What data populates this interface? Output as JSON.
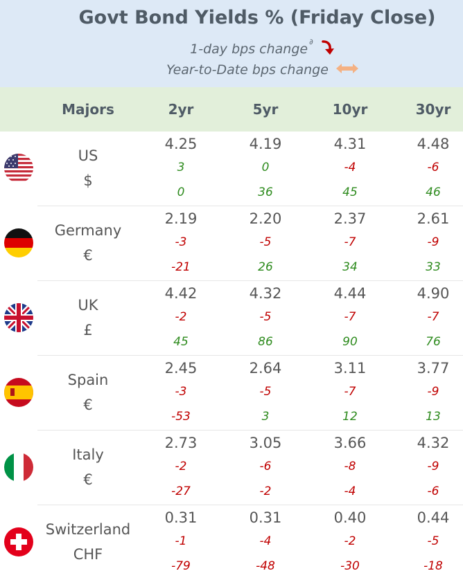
{
  "header": {
    "title": "Govt Bond Yields %  (Friday Close)",
    "legend_1day": "1-day bps change",
    "legend_1day_sup": "∂",
    "legend_ytd": "Year-to-Date bps change"
  },
  "columns": {
    "majors": "Majors",
    "c2": "2yr",
    "c5": "5yr",
    "c10": "10yr",
    "c30": "30yr"
  },
  "colors": {
    "header_bg": "#dde9f6",
    "colhead_bg": "#e2efda",
    "positive": "#2e8b1e",
    "negative": "#c00000"
  },
  "rows": [
    {
      "country": "US",
      "currency": "$",
      "flag": "us-flag",
      "yields": [
        "4.25",
        "4.19",
        "4.31",
        "4.48"
      ],
      "day": [
        "3",
        "0",
        "-4",
        "-6"
      ],
      "ytd": [
        "0",
        "36",
        "45",
        "46"
      ]
    },
    {
      "country": "Germany",
      "currency": "€",
      "flag": "germany-flag",
      "yields": [
        "2.19",
        "2.20",
        "2.37",
        "2.61"
      ],
      "day": [
        "-3",
        "-5",
        "-7",
        "-9"
      ],
      "ytd": [
        "-21",
        "26",
        "34",
        "33"
      ]
    },
    {
      "country": "UK",
      "currency": "£",
      "flag": "uk-flag",
      "yields": [
        "4.42",
        "4.32",
        "4.44",
        "4.90"
      ],
      "day": [
        "-2",
        "-5",
        "-7",
        "-7"
      ],
      "ytd": [
        "45",
        "86",
        "90",
        "76"
      ]
    },
    {
      "country": "Spain",
      "currency": "€",
      "flag": "spain-flag",
      "yields": [
        "2.45",
        "2.64",
        "3.11",
        "3.77"
      ],
      "day": [
        "-3",
        "-5",
        "-7",
        "-9"
      ],
      "ytd": [
        "-53",
        "3",
        "12",
        "13"
      ]
    },
    {
      "country": "Italy",
      "currency": "€",
      "flag": "italy-flag",
      "yields": [
        "2.73",
        "3.05",
        "3.66",
        "4.32"
      ],
      "day": [
        "-2",
        "-6",
        "-8",
        "-9"
      ],
      "ytd": [
        "-27",
        "-2",
        "-4",
        "-6"
      ]
    },
    {
      "country": "Switzerland",
      "currency": "CHF",
      "flag": "switzerland-flag",
      "yields": [
        "0.31",
        "0.31",
        "0.40",
        "0.44"
      ],
      "day": [
        "-1",
        "-4",
        "-2",
        "-5"
      ],
      "ytd": [
        "-79",
        "-48",
        "-30",
        "-18"
      ]
    }
  ]
}
